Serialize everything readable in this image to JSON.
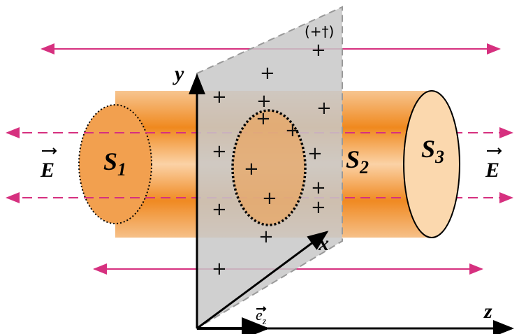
{
  "labels": {
    "axis_y": "y",
    "axis_x": "x",
    "axis_z": "z",
    "charge": "(+†)",
    "field_left": "E",
    "field_right": "E",
    "unit_vector": {
      "main": "e",
      "sub": "z"
    },
    "surfaces": [
      {
        "main": "S",
        "sub": "1"
      },
      {
        "main": "S",
        "sub": "2"
      },
      {
        "main": "S",
        "sub": "3"
      }
    ]
  }
}
